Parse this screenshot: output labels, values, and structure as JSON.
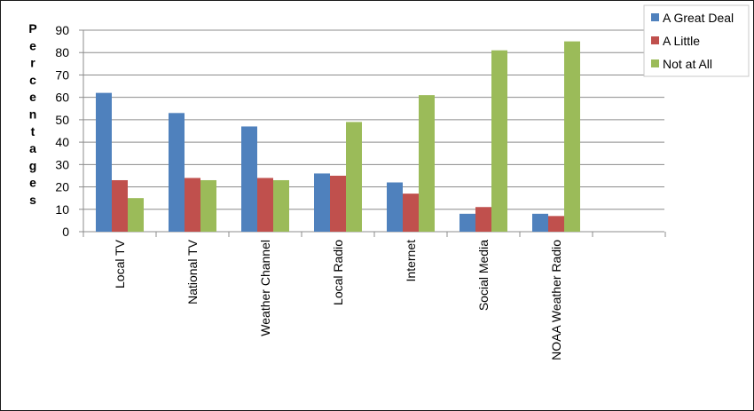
{
  "chart_data": {
    "type": "bar",
    "title": "",
    "xlabel": "",
    "ylabel": "Percentages",
    "ylim": [
      0,
      90
    ],
    "y_ticks": [
      0,
      10,
      20,
      30,
      40,
      50,
      60,
      70,
      80,
      90
    ],
    "grid": true,
    "legend_position": "top-right",
    "categories": [
      "Local TV",
      "National TV",
      "Weather Channel",
      "Local Radio",
      "Internet",
      "Social Media",
      "NOAA Weather Radio"
    ],
    "series": [
      {
        "name": "A Great Deal",
        "color": "#4f81bd",
        "values": [
          62,
          53,
          47,
          26,
          22,
          8,
          8
        ]
      },
      {
        "name": "A Little",
        "color": "#c0504d",
        "values": [
          23,
          24,
          24,
          25,
          17,
          11,
          7
        ]
      },
      {
        "name": "Not at All",
        "color": "#9bbb59",
        "values": [
          15,
          23,
          23,
          49,
          61,
          81,
          85
        ]
      }
    ]
  }
}
